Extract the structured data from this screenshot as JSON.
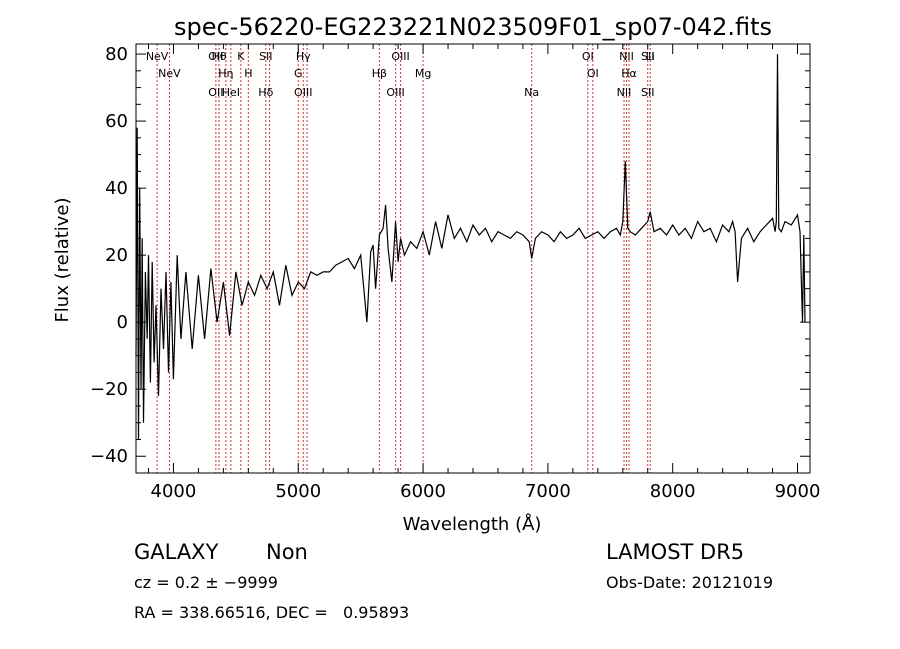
{
  "chart_data": {
    "type": "line",
    "title": "spec-56220-EG223221N023509F01_sp07-042.fits",
    "xlabel": "Wavelength (Å)",
    "ylabel": "Flux (relative)",
    "xlim": [
      3700,
      9100
    ],
    "ylim": [
      -45,
      83
    ],
    "xticks": [
      4000,
      5000,
      6000,
      7000,
      8000,
      9000
    ],
    "yticks": [
      -40,
      -20,
      0,
      20,
      40,
      60,
      80
    ],
    "xtick_labels": [
      "4000",
      "5000",
      "6000",
      "7000",
      "8000",
      "9000"
    ],
    "ytick_labels": [
      "−40",
      "−20",
      "0",
      "20",
      "40",
      "60",
      "80"
    ],
    "grid": false,
    "line_color": "#000000",
    "marker_color": "#cc3333",
    "series": [
      {
        "x": [
          3700,
          3710,
          3720,
          3730,
          3740,
          3750,
          3760,
          3775,
          3790,
          3800,
          3815,
          3830,
          3845,
          3860,
          3880,
          3900,
          3920,
          3940,
          3960,
          3980,
          4000,
          4030,
          4060,
          4100,
          4150,
          4200,
          4250,
          4300,
          4350,
          4400,
          4450,
          4500,
          4550,
          4600,
          4650,
          4700,
          4750,
          4800,
          4850,
          4900,
          4950,
          5000,
          5050,
          5100,
          5150,
          5200,
          5250,
          5300,
          5350,
          5400,
          5450,
          5500,
          5550,
          5580,
          5600,
          5620,
          5650,
          5680,
          5700,
          5720,
          5750,
          5780,
          5800,
          5820,
          5850,
          5900,
          5950,
          6000,
          6050,
          6100,
          6150,
          6200,
          6250,
          6300,
          6350,
          6400,
          6450,
          6500,
          6550,
          6600,
          6650,
          6700,
          6750,
          6800,
          6850,
          6870,
          6900,
          6950,
          7000,
          7050,
          7100,
          7150,
          7200,
          7250,
          7300,
          7350,
          7400,
          7450,
          7500,
          7550,
          7580,
          7600,
          7620,
          7640,
          7660,
          7700,
          7750,
          7800,
          7820,
          7850,
          7900,
          7950,
          8000,
          8050,
          8100,
          8150,
          8200,
          8250,
          8300,
          8350,
          8400,
          8450,
          8480,
          8500,
          8520,
          8550,
          8600,
          8650,
          8700,
          8750,
          8800,
          8820,
          8830,
          8840,
          8850,
          8870,
          8900,
          8950,
          9000,
          9020,
          9040,
          9050,
          9060
        ],
        "y": [
          -10,
          58,
          -35,
          40,
          -20,
          25,
          -30,
          15,
          -5,
          20,
          -18,
          18,
          -12,
          5,
          -22,
          10,
          -8,
          15,
          -15,
          12,
          -17,
          20,
          -5,
          15,
          -8,
          14,
          -5,
          16,
          0,
          12,
          -4,
          15,
          5,
          12,
          8,
          14,
          10,
          15,
          5,
          17,
          8,
          12,
          10,
          15,
          14,
          15,
          15,
          17,
          18,
          19,
          16,
          20,
          0,
          21,
          23,
          10,
          26,
          28,
          35,
          22,
          12,
          30,
          18,
          25,
          20,
          24,
          22,
          27,
          20,
          30,
          22,
          32,
          25,
          28,
          24,
          29,
          26,
          28,
          24,
          27,
          26,
          25,
          27,
          26,
          24,
          19,
          25,
          27,
          26,
          24,
          27,
          25,
          26,
          28,
          25,
          26,
          27,
          25,
          27,
          28,
          26,
          30,
          48,
          28,
          27,
          26,
          28,
          30,
          33,
          27,
          28,
          26,
          29,
          26,
          28,
          25,
          30,
          27,
          28,
          24,
          29,
          27,
          30,
          27,
          12,
          25,
          28,
          24,
          27,
          29,
          31,
          27,
          30,
          80,
          28,
          27,
          30,
          29,
          32,
          27,
          0,
          26,
          0
        ]
      }
    ],
    "lines": [
      {
        "x": 3869,
        "labels": [
          "NeV"
        ]
      },
      {
        "x": 3968,
        "labels": [
          "NeV"
        ]
      },
      {
        "x": 4340,
        "labels": [
          "OII",
          "OII"
        ]
      },
      {
        "x": 4365,
        "labels": [
          "Hθ"
        ]
      },
      {
        "x": 4420,
        "labels": [
          "Hη"
        ]
      },
      {
        "x": 4460,
        "labels": [
          "HeI"
        ]
      },
      {
        "x": 4540,
        "labels": [
          "K"
        ]
      },
      {
        "x": 4600,
        "labels": [
          "H"
        ]
      },
      {
        "x": 4740,
        "labels": [
          "Hδ",
          "SII"
        ]
      },
      {
        "x": 4770,
        "labels": []
      },
      {
        "x": 5000,
        "labels": [
          "G"
        ]
      },
      {
        "x": 5040,
        "labels": [
          "OIII",
          "Hγ"
        ]
      },
      {
        "x": 5070,
        "labels": []
      },
      {
        "x": 5650,
        "labels": [
          "Hβ"
        ]
      },
      {
        "x": 5780,
        "labels": [
          "OIII"
        ]
      },
      {
        "x": 5820,
        "labels": [
          "OIII"
        ]
      },
      {
        "x": 6000,
        "labels": [
          "Mg"
        ]
      },
      {
        "x": 6870,
        "labels": [
          "Na"
        ]
      },
      {
        "x": 7320,
        "labels": [
          "OI"
        ]
      },
      {
        "x": 7360,
        "labels": [
          "OI"
        ]
      },
      {
        "x": 7610,
        "labels": [
          "NII"
        ]
      },
      {
        "x": 7630,
        "labels": [
          "NII"
        ]
      },
      {
        "x": 7650,
        "labels": [
          "Hα"
        ]
      },
      {
        "x": 7800,
        "labels": [
          "SII",
          "SII"
        ]
      },
      {
        "x": 7820,
        "labels": [
          "Li"
        ]
      }
    ]
  },
  "info": {
    "object_class": "GALAXY",
    "subclass": "Non",
    "survey": "LAMOST DR5",
    "cz_line": "cz = 0.2 ± −9999",
    "obs_date": "Obs-Date: 20121019",
    "coords": "RA = 338.66516, DEC =   0.95893"
  }
}
